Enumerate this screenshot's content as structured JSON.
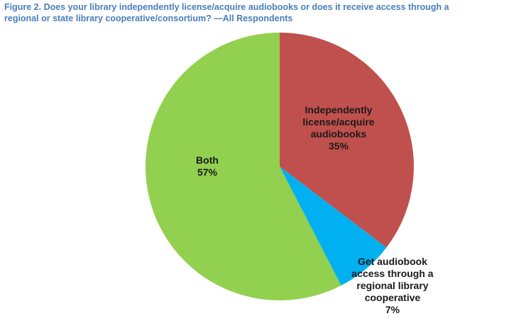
{
  "title_lines": [
    "Figure 2. Does your library independently license/acquire audiobooks or does it receive access through a",
    "regional or state library cooperative/consortium? —All Respondents"
  ],
  "chart_data": {
    "type": "pie",
    "title": "Figure 2. Does your library independently license/acquire audiobooks or does it receive access through a regional or state library cooperative/consortium? —All Respondents",
    "slices": [
      {
        "label": [
          "Independently",
          "license/acquire",
          "audiobooks"
        ],
        "value": 35,
        "value_label": "35%",
        "color": "#c0504d"
      },
      {
        "label": [
          "Get audiobook",
          "access through a",
          "regional library",
          "cooperative"
        ],
        "value": 7,
        "value_label": "7%",
        "color": "#00b0f0"
      },
      {
        "label": [
          "Both"
        ],
        "value": 57,
        "value_label": "57%",
        "color": "#92d050"
      }
    ],
    "start": "12 o'clock",
    "direction": "clockwise"
  }
}
